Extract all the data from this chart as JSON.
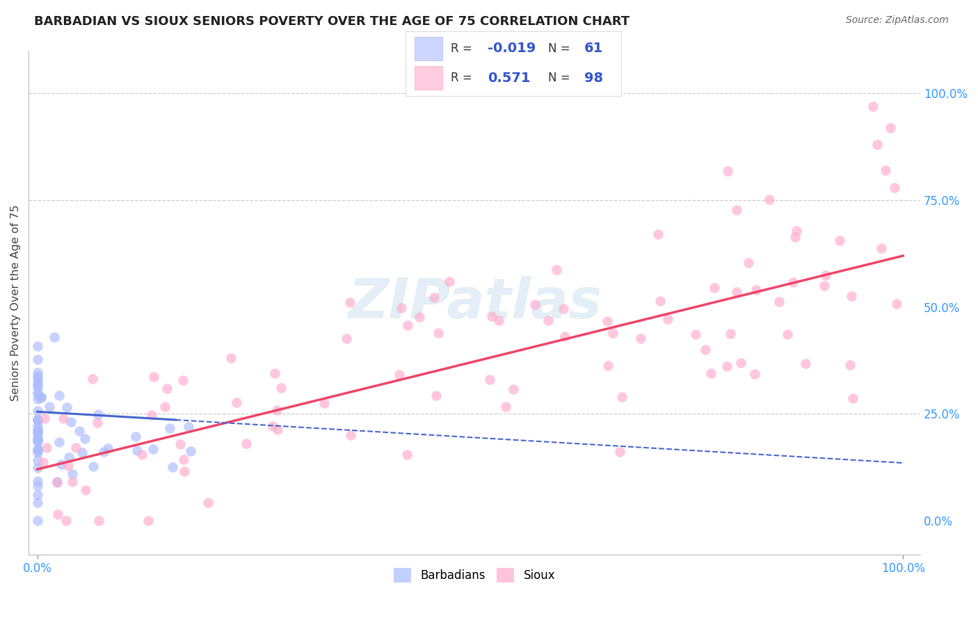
{
  "title": "BARBADIAN VS SIOUX SENIORS POVERTY OVER THE AGE OF 75 CORRELATION CHART",
  "source": "Source: ZipAtlas.com",
  "ylabel": "Seniors Poverty Over the Age of 75",
  "xlim": [
    -0.01,
    1.02
  ],
  "ylim": [
    -0.08,
    1.1
  ],
  "x_ticks": [
    0.0,
    1.0
  ],
  "x_tick_labels": [
    "0.0%",
    "100.0%"
  ],
  "y_ticks_right": [
    0.0,
    0.25,
    0.5,
    0.75,
    1.0
  ],
  "y_tick_labels_right": [
    "0.0%",
    "25.0%",
    "50.0%",
    "75.0%",
    "100.0%"
  ],
  "hlines": [
    1.0,
    0.75,
    0.25
  ],
  "barbadian_color": "#aabbff",
  "sioux_color": "#ffaacc",
  "barbadian_line_color": "#4466cc",
  "sioux_line_color": "#ee4466",
  "watermark_text": "ZIPatlas",
  "background_color": "#ffffff",
  "title_color": "#222222",
  "title_fontsize": 13,
  "axis_label_color": "#444444",
  "tick_color": "#3399ff",
  "source_color": "#666666"
}
